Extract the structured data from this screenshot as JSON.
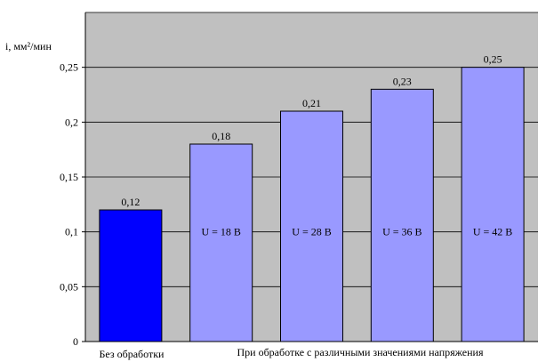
{
  "chart_data": {
    "type": "bar",
    "ylabel": "i, мм²/мин",
    "ylim": [
      0,
      0.3
    ],
    "yticks": [
      0,
      0.05,
      0.1,
      0.15,
      0.2,
      0.25
    ],
    "ytick_labels": [
      "0",
      "0,05",
      "0,1",
      "0,15",
      "0,2",
      "0,25"
    ],
    "grid": true,
    "plot_background": "#c0c0c0",
    "categories": [
      "Без обработки",
      "U = 18 В",
      "U = 28 В",
      "U = 36 В",
      "U = 42 В"
    ],
    "values": [
      0.12,
      0.18,
      0.21,
      0.23,
      0.25
    ],
    "value_labels": [
      "0,12",
      "0,18",
      "0,21",
      "0,23",
      "0,25"
    ],
    "bar_inner_labels": [
      "",
      "U = 18 В",
      "U = 28 В",
      "U = 36 В",
      "U = 42 В"
    ],
    "bar_colors": [
      "#0000ff",
      "#9999ff",
      "#9999ff",
      "#9999ff",
      "#9999ff"
    ],
    "x_group_labels": [
      "Без обработки",
      "При обработке с различными значениями напряжения"
    ]
  }
}
